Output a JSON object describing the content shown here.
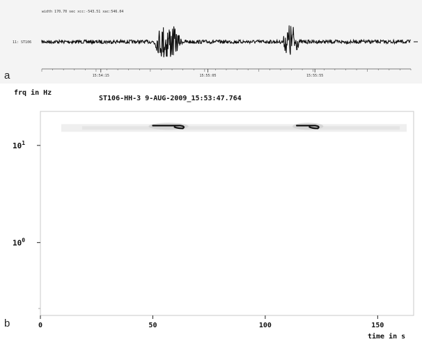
{
  "panel_a": {
    "letter": "a",
    "header_text": "width 170.70 sec  xcc:-543.51  xac:546.04",
    "trace_label": "11: ST106",
    "time_ticks": [
      {
        "label": "15:54:15",
        "pos_frac": 0.16
      },
      {
        "label": "15:55:05",
        "pos_frac": 0.45
      },
      {
        "label": "15:55:55",
        "pos_frac": 0.74
      }
    ],
    "bursts": [
      {
        "center_frac": 0.34,
        "width_frac": 0.085,
        "peak": 1.0
      },
      {
        "center_frac": 0.675,
        "width_frac": 0.05,
        "peak": 0.95
      }
    ]
  },
  "panel_b": {
    "letter": "b",
    "ylabel": "frq in Hz",
    "title": "ST106-HH-3 9-AUG-2009_15:53:47.764",
    "xlabel": "time in s"
  },
  "chart_data": {
    "type": "heatmap",
    "title": "ST106-HH-3 9-AUG-2009_15:53:47.764",
    "xlabel": "time in s",
    "ylabel": "frq in Hz",
    "xlim": [
      0,
      166
    ],
    "x_ticks": [
      0,
      50,
      100,
      150
    ],
    "ylim_log10": [
      -0.75,
      1.35
    ],
    "y_scale": "log",
    "y_ticks": [
      {
        "base": "10",
        "exp": "1",
        "value": 10
      },
      {
        "base": "10",
        "exp": "0",
        "value": 1
      }
    ],
    "band_freq_hz": 15,
    "events": [
      {
        "t_start": 50,
        "t_end": 64,
        "freq_hz": 16
      },
      {
        "t_start": 114,
        "t_end": 124,
        "freq_hz": 16
      }
    ],
    "grid": false
  }
}
